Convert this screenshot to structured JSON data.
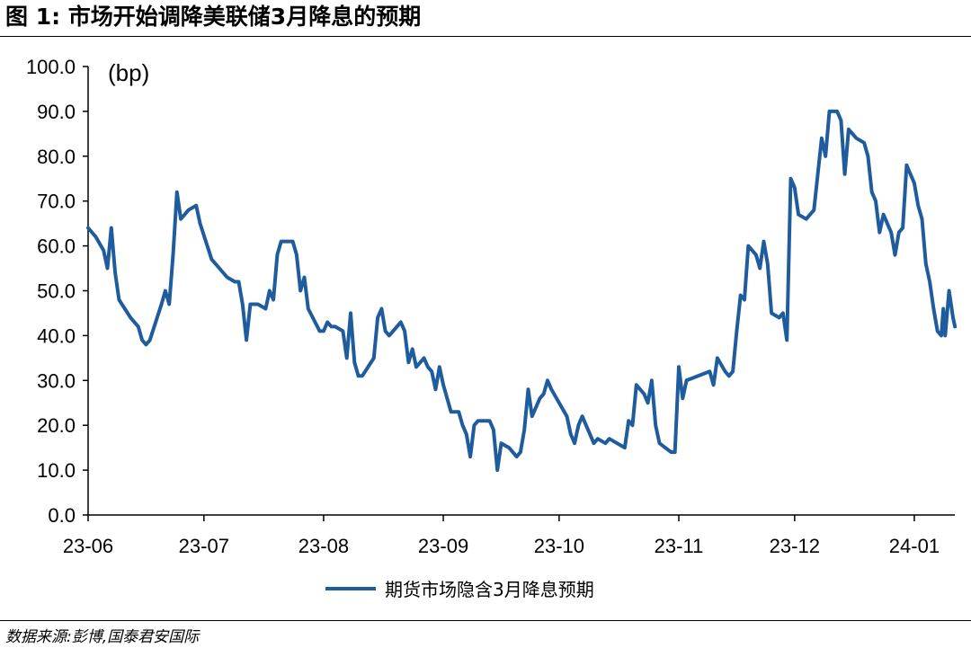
{
  "figure": {
    "title": "图 1:  市场开始调降美联储3月降息的预期",
    "source": "数据来源:彭博,国泰君安国际"
  },
  "chart_data": {
    "type": "line",
    "unit_label": "(bp)",
    "ylim": [
      0,
      100
    ],
    "y_ticks": [
      "0.0",
      "10.0",
      "20.0",
      "30.0",
      "40.0",
      "50.0",
      "60.0",
      "70.0",
      "80.0",
      "90.0",
      "100.0"
    ],
    "x_ticks": [
      {
        "label": "23-06",
        "date": "2023-06-01"
      },
      {
        "label": "23-07",
        "date": "2023-07-01"
      },
      {
        "label": "23-08",
        "date": "2023-08-01"
      },
      {
        "label": "23-09",
        "date": "2023-09-01"
      },
      {
        "label": "23-10",
        "date": "2023-10-01"
      },
      {
        "label": "23-11",
        "date": "2023-11-01"
      },
      {
        "label": "23-12",
        "date": "2023-12-01"
      },
      {
        "label": "24-01",
        "date": "2024-01-01"
      }
    ],
    "xlim": [
      "2023-06-01",
      "2024-01-10"
    ],
    "grid": false,
    "legend_position": "bottom",
    "color": "#1F5C9E",
    "series": [
      {
        "name": "期货市场隐含3月降息预期",
        "points": [
          [
            "2023-06-01",
            64
          ],
          [
            "2023-06-03",
            62
          ],
          [
            "2023-06-05",
            59
          ],
          [
            "2023-06-06",
            55
          ],
          [
            "2023-06-07",
            64
          ],
          [
            "2023-06-08",
            54
          ],
          [
            "2023-06-09",
            48
          ],
          [
            "2023-06-12",
            44
          ],
          [
            "2023-06-14",
            42
          ],
          [
            "2023-06-15",
            39
          ],
          [
            "2023-06-16",
            38
          ],
          [
            "2023-06-17",
            39
          ],
          [
            "2023-06-20",
            47
          ],
          [
            "2023-06-21",
            50
          ],
          [
            "2023-06-22",
            47
          ],
          [
            "2023-06-23",
            58
          ],
          [
            "2023-06-24",
            72
          ],
          [
            "2023-06-25",
            66
          ],
          [
            "2023-06-26",
            67
          ],
          [
            "2023-06-27",
            68
          ],
          [
            "2023-06-29",
            69
          ],
          [
            "2023-06-30",
            65
          ],
          [
            "2023-07-03",
            57
          ],
          [
            "2023-07-05",
            55
          ],
          [
            "2023-07-07",
            53
          ],
          [
            "2023-07-09",
            52
          ],
          [
            "2023-07-10",
            52
          ],
          [
            "2023-07-11",
            47
          ],
          [
            "2023-07-12",
            39
          ],
          [
            "2023-07-13",
            47
          ],
          [
            "2023-07-15",
            47
          ],
          [
            "2023-07-17",
            46
          ],
          [
            "2023-07-18",
            50
          ],
          [
            "2023-07-19",
            48
          ],
          [
            "2023-07-20",
            58
          ],
          [
            "2023-07-21",
            61
          ],
          [
            "2023-07-24",
            61
          ],
          [
            "2023-07-25",
            58
          ],
          [
            "2023-07-26",
            50
          ],
          [
            "2023-07-27",
            53
          ],
          [
            "2023-07-28",
            46
          ],
          [
            "2023-07-31",
            41
          ],
          [
            "2023-08-01",
            41
          ],
          [
            "2023-08-02",
            43
          ],
          [
            "2023-08-03",
            42
          ],
          [
            "2023-08-04",
            42
          ],
          [
            "2023-08-06",
            41
          ],
          [
            "2023-08-07",
            35
          ],
          [
            "2023-08-08",
            45
          ],
          [
            "2023-08-09",
            34
          ],
          [
            "2023-08-10",
            31
          ],
          [
            "2023-08-11",
            31
          ],
          [
            "2023-08-14",
            35
          ],
          [
            "2023-08-15",
            44
          ],
          [
            "2023-08-16",
            46
          ],
          [
            "2023-08-17",
            41
          ],
          [
            "2023-08-18",
            40
          ],
          [
            "2023-08-21",
            43
          ],
          [
            "2023-08-22",
            41
          ],
          [
            "2023-08-23",
            34
          ],
          [
            "2023-08-24",
            37
          ],
          [
            "2023-08-25",
            33
          ],
          [
            "2023-08-27",
            35
          ],
          [
            "2023-08-28",
            33
          ],
          [
            "2023-08-29",
            32
          ],
          [
            "2023-08-30",
            28
          ],
          [
            "2023-08-31",
            33
          ],
          [
            "2023-09-01",
            29
          ],
          [
            "2023-09-03",
            23
          ],
          [
            "2023-09-05",
            23
          ],
          [
            "2023-09-06",
            20
          ],
          [
            "2023-09-07",
            18
          ],
          [
            "2023-09-08",
            13
          ],
          [
            "2023-09-09",
            20
          ],
          [
            "2023-09-10",
            21
          ],
          [
            "2023-09-13",
            21
          ],
          [
            "2023-09-14",
            19
          ],
          [
            "2023-09-15",
            10
          ],
          [
            "2023-09-16",
            16
          ],
          [
            "2023-09-18",
            15
          ],
          [
            "2023-09-20",
            13
          ],
          [
            "2023-09-21",
            14
          ],
          [
            "2023-09-22",
            19
          ],
          [
            "2023-09-23",
            28
          ],
          [
            "2023-09-24",
            22
          ],
          [
            "2023-09-26",
            26
          ],
          [
            "2023-09-27",
            27
          ],
          [
            "2023-09-28",
            30
          ],
          [
            "2023-09-29",
            28
          ],
          [
            "2023-10-01",
            25
          ],
          [
            "2023-10-03",
            22
          ],
          [
            "2023-10-04",
            18
          ],
          [
            "2023-10-05",
            16
          ],
          [
            "2023-10-06",
            20
          ],
          [
            "2023-10-07",
            22
          ],
          [
            "2023-10-09",
            18
          ],
          [
            "2023-10-10",
            16
          ],
          [
            "2023-10-11",
            17
          ],
          [
            "2023-10-13",
            16
          ],
          [
            "2023-10-14",
            17
          ],
          [
            "2023-10-16",
            16
          ],
          [
            "2023-10-18",
            15
          ],
          [
            "2023-10-19",
            21
          ],
          [
            "2023-10-20",
            20
          ],
          [
            "2023-10-21",
            29
          ],
          [
            "2023-10-23",
            27
          ],
          [
            "2023-10-24",
            25
          ],
          [
            "2023-10-25",
            30
          ],
          [
            "2023-10-26",
            20
          ],
          [
            "2023-10-27",
            16
          ],
          [
            "2023-10-30",
            14
          ],
          [
            "2023-10-31",
            14
          ],
          [
            "2023-11-01",
            33
          ],
          [
            "2023-11-02",
            26
          ],
          [
            "2023-11-03",
            30
          ],
          [
            "2023-11-06",
            31
          ],
          [
            "2023-11-09",
            32
          ],
          [
            "2023-11-10",
            29
          ],
          [
            "2023-11-11",
            35
          ],
          [
            "2023-11-13",
            32
          ],
          [
            "2023-11-14",
            31
          ],
          [
            "2023-11-15",
            32
          ],
          [
            "2023-11-16",
            41
          ],
          [
            "2023-11-17",
            49
          ],
          [
            "2023-11-18",
            48
          ],
          [
            "2023-11-19",
            60
          ],
          [
            "2023-11-21",
            58
          ],
          [
            "2023-11-22",
            55
          ],
          [
            "2023-11-23",
            61
          ],
          [
            "2023-11-24",
            56
          ],
          [
            "2023-11-25",
            45
          ],
          [
            "2023-11-27",
            44
          ],
          [
            "2023-11-28",
            45
          ],
          [
            "2023-11-29",
            39
          ],
          [
            "2023-11-30",
            75
          ],
          [
            "2023-12-01",
            73
          ],
          [
            "2023-12-02",
            67
          ],
          [
            "2023-12-04",
            66
          ],
          [
            "2023-12-06",
            68
          ],
          [
            "2023-12-08",
            84
          ],
          [
            "2023-12-09",
            80
          ],
          [
            "2023-12-10",
            90
          ],
          [
            "2023-12-12",
            90
          ],
          [
            "2023-12-13",
            88
          ],
          [
            "2023-12-14",
            76
          ],
          [
            "2023-12-15",
            86
          ],
          [
            "2023-12-17",
            84
          ],
          [
            "2023-12-19",
            83
          ],
          [
            "2023-12-20",
            80
          ],
          [
            "2023-12-21",
            72
          ],
          [
            "2023-12-22",
            70
          ],
          [
            "2023-12-23",
            63
          ],
          [
            "2023-12-24",
            67
          ],
          [
            "2023-12-26",
            63
          ],
          [
            "2023-12-27",
            58
          ],
          [
            "2023-12-28",
            63
          ],
          [
            "2023-12-29",
            64
          ],
          [
            "2023-12-30",
            78
          ],
          [
            "2024-01-01",
            74
          ],
          [
            "2024-01-02",
            69
          ],
          [
            "2024-01-03",
            66
          ],
          [
            "2024-01-04",
            56
          ],
          [
            "2024-01-05",
            52
          ],
          [
            "2024-01-06",
            46
          ],
          [
            "2024-01-07",
            41
          ],
          [
            "2024-01-08",
            40
          ],
          [
            "2024-01-08",
            46
          ],
          [
            "2024-01-09",
            40
          ],
          [
            "2024-01-10",
            50
          ],
          [
            "2024-01-10",
            47
          ],
          [
            "2024-01-10",
            44
          ],
          [
            "2024-01-10",
            42
          ]
        ]
      }
    ]
  }
}
